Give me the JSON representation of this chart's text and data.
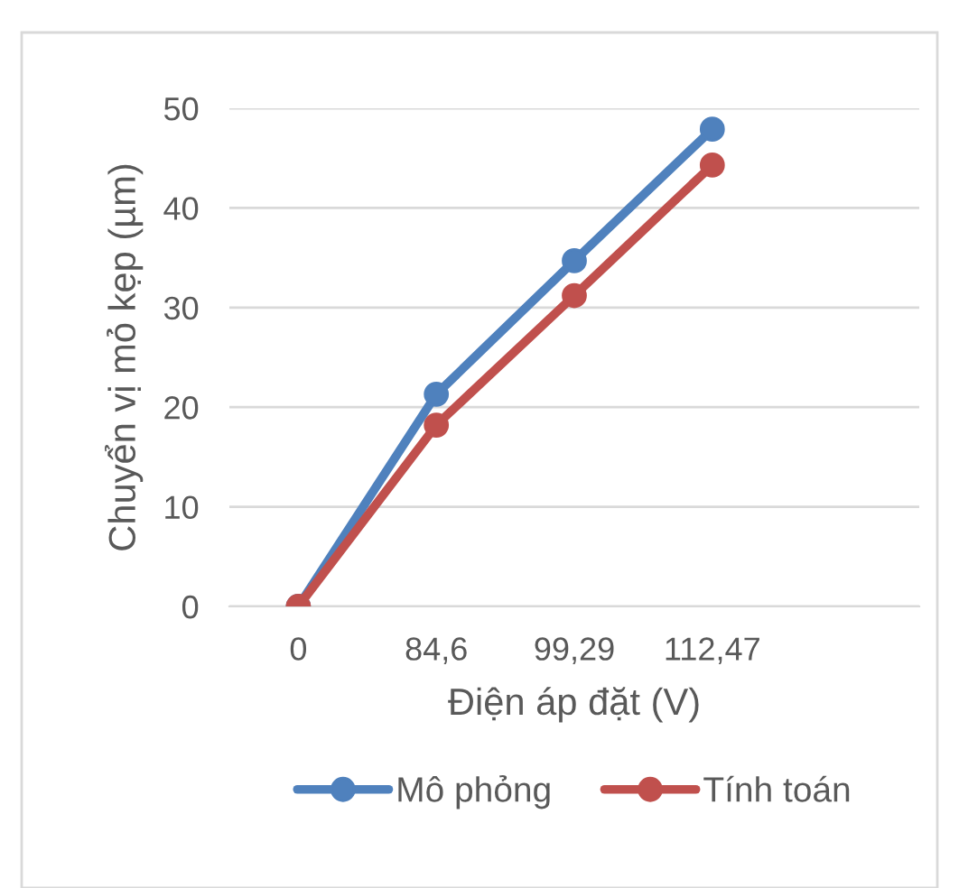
{
  "chart_data": {
    "type": "line",
    "xlabel": "Điện áp đặt (V)",
    "ylabel": "Chuyển vị mỏ kẹp (µm)",
    "categories": [
      "0",
      "84,6",
      "99,29",
      "112,47",
      null
    ],
    "series": [
      {
        "name": "Mô phỏng",
        "color": "#4f81bd",
        "values": [
          0,
          21.3,
          34.7,
          47.9,
          null
        ]
      },
      {
        "name": "Tính toán",
        "color": "#c0504d",
        "values": [
          0,
          18.2,
          31.2,
          44.3,
          null
        ]
      }
    ],
    "ylim": [
      0,
      50
    ],
    "yticks": [
      0,
      10,
      20,
      30,
      40,
      50
    ],
    "grid": "y",
    "legend": "bottom",
    "marker": "circle",
    "line_style": "solid"
  }
}
